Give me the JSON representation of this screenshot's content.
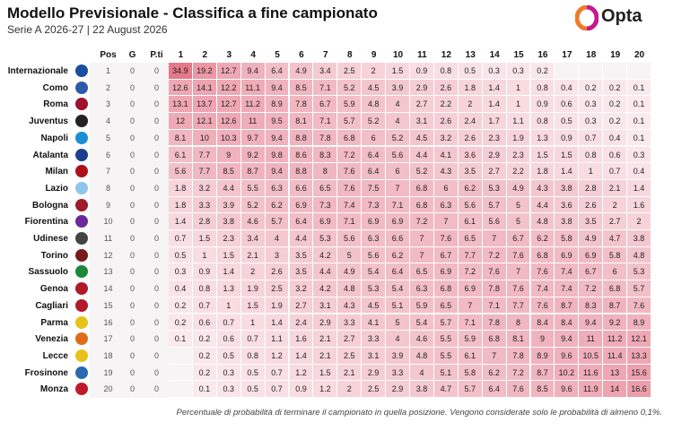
{
  "header": {
    "title": "Modello Previsionale - Classifica a fine campionato",
    "subtitle": "Serie A 2026-27 | 22 August 2026",
    "brand": "Opta"
  },
  "table": {
    "columns": [
      "Pos",
      "G",
      "P.ti",
      "1",
      "2",
      "3",
      "4",
      "5",
      "6",
      "7",
      "8",
      "9",
      "10",
      "11",
      "12",
      "13",
      "14",
      "15",
      "16",
      "17",
      "18",
      "19",
      "20"
    ],
    "rows": [
      {
        "team": "Internazionale",
        "pos": 1,
        "g": 0,
        "pts": 0,
        "probs": [
          34.9,
          19.2,
          12.7,
          9.4,
          6.4,
          4.9,
          3.4,
          2.5,
          2.0,
          1.5,
          0.9,
          0.8,
          0.5,
          0.3,
          0.3,
          0.2,
          null,
          null,
          null,
          null
        ]
      },
      {
        "team": "Como",
        "pos": 2,
        "g": 0,
        "pts": 0,
        "probs": [
          12.6,
          14.1,
          12.2,
          11.1,
          9.4,
          8.5,
          7.1,
          5.2,
          4.5,
          3.9,
          2.9,
          2.6,
          1.8,
          1.4,
          1.0,
          0.8,
          0.4,
          0.2,
          0.2,
          0.1
        ]
      },
      {
        "team": "Roma",
        "pos": 3,
        "g": 0,
        "pts": 0,
        "probs": [
          13.1,
          13.7,
          12.7,
          11.2,
          8.9,
          7.8,
          6.7,
          5.9,
          4.8,
          4.0,
          2.7,
          2.2,
          2.0,
          1.4,
          1.0,
          0.9,
          0.6,
          0.3,
          0.2,
          0.1
        ]
      },
      {
        "team": "Juventus",
        "pos": 4,
        "g": 0,
        "pts": 0,
        "probs": [
          12.0,
          12.1,
          12.6,
          11.0,
          9.5,
          8.1,
          7.1,
          5.7,
          5.2,
          4.0,
          3.1,
          2.6,
          2.4,
          1.7,
          1.1,
          0.8,
          0.5,
          0.3,
          0.2,
          0.1
        ]
      },
      {
        "team": "Napoli",
        "pos": 5,
        "g": 0,
        "pts": 0,
        "probs": [
          8.1,
          10.0,
          10.3,
          9.7,
          9.4,
          8.8,
          7.8,
          6.8,
          6.0,
          5.2,
          4.5,
          3.2,
          2.6,
          2.3,
          1.9,
          1.3,
          0.9,
          0.7,
          0.4,
          0.1
        ]
      },
      {
        "team": "Atalanta",
        "pos": 6,
        "g": 0,
        "pts": 0,
        "probs": [
          6.1,
          7.7,
          9.0,
          9.2,
          9.8,
          8.6,
          8.3,
          7.2,
          6.4,
          5.6,
          4.4,
          4.1,
          3.6,
          2.9,
          2.3,
          1.5,
          1.5,
          0.8,
          0.6,
          0.3
        ]
      },
      {
        "team": "Milan",
        "pos": 7,
        "g": 0,
        "pts": 0,
        "probs": [
          5.6,
          7.7,
          8.5,
          8.7,
          9.4,
          8.8,
          8.0,
          7.6,
          6.4,
          6.0,
          5.2,
          4.3,
          3.5,
          2.7,
          2.2,
          1.8,
          1.4,
          1.0,
          0.7,
          0.4
        ]
      },
      {
        "team": "Lazio",
        "pos": 8,
        "g": 0,
        "pts": 0,
        "probs": [
          1.8,
          3.2,
          4.4,
          5.5,
          6.3,
          6.6,
          6.5,
          7.6,
          7.5,
          7.0,
          6.8,
          6.0,
          6.2,
          5.3,
          4.9,
          4.3,
          3.8,
          2.8,
          2.1,
          1.4
        ]
      },
      {
        "team": "Bologna",
        "pos": 9,
        "g": 0,
        "pts": 0,
        "probs": [
          1.8,
          3.3,
          3.9,
          5.2,
          6.2,
          6.9,
          7.3,
          7.4,
          7.3,
          7.1,
          6.8,
          6.3,
          5.6,
          5.7,
          5.0,
          4.4,
          3.6,
          2.6,
          2.0,
          1.6
        ]
      },
      {
        "team": "Fiorentina",
        "pos": 10,
        "g": 0,
        "pts": 0,
        "probs": [
          1.4,
          2.8,
          3.8,
          4.6,
          5.7,
          6.4,
          6.9,
          7.1,
          6.9,
          6.9,
          7.2,
          7.0,
          6.1,
          5.6,
          5.0,
          4.8,
          3.8,
          3.5,
          2.7,
          2.0
        ]
      },
      {
        "team": "Udinese",
        "pos": 11,
        "g": 0,
        "pts": 0,
        "probs": [
          0.7,
          1.5,
          2.3,
          3.4,
          4.0,
          4.4,
          5.3,
          5.6,
          6.3,
          6.6,
          7.0,
          7.6,
          6.5,
          7.0,
          6.7,
          6.2,
          5.8,
          4.9,
          4.7,
          3.8
        ]
      },
      {
        "team": "Torino",
        "pos": 12,
        "g": 0,
        "pts": 0,
        "probs": [
          0.5,
          1.0,
          1.5,
          2.1,
          3.0,
          3.5,
          4.2,
          5.0,
          5.6,
          6.2,
          7.0,
          6.7,
          7.7,
          7.2,
          7.6,
          6.8,
          6.9,
          6.9,
          5.8,
          4.8
        ]
      },
      {
        "team": "Sassuolo",
        "pos": 13,
        "g": 0,
        "pts": 0,
        "probs": [
          0.3,
          0.9,
          1.4,
          2.0,
          2.6,
          3.5,
          4.4,
          4.9,
          5.4,
          6.4,
          6.5,
          6.9,
          7.2,
          7.6,
          7.0,
          7.6,
          7.4,
          6.7,
          6.0,
          5.3
        ]
      },
      {
        "team": "Genoa",
        "pos": 14,
        "g": 0,
        "pts": 0,
        "probs": [
          0.4,
          0.8,
          1.3,
          1.9,
          2.5,
          3.2,
          4.2,
          4.8,
          5.3,
          5.4,
          6.3,
          6.8,
          6.9,
          7.8,
          7.6,
          7.4,
          7.4,
          7.2,
          6.8,
          5.7
        ]
      },
      {
        "team": "Cagliari",
        "pos": 15,
        "g": 0,
        "pts": 0,
        "probs": [
          0.2,
          0.7,
          1.0,
          1.5,
          1.9,
          2.7,
          3.1,
          4.3,
          4.5,
          5.1,
          5.9,
          6.5,
          7.0,
          7.1,
          7.7,
          7.6,
          8.7,
          8.3,
          8.7,
          7.6
        ]
      },
      {
        "team": "Parma",
        "pos": 16,
        "g": 0,
        "pts": 0,
        "probs": [
          0.2,
          0.6,
          0.7,
          1.0,
          1.4,
          2.4,
          2.9,
          3.3,
          4.1,
          5.0,
          5.4,
          5.7,
          7.1,
          7.8,
          8.0,
          8.4,
          8.4,
          9.4,
          9.2,
          8.9
        ]
      },
      {
        "team": "Venezia",
        "pos": 17,
        "g": 0,
        "pts": 0,
        "probs": [
          0.1,
          0.2,
          0.6,
          0.7,
          1.1,
          1.6,
          2.1,
          2.7,
          3.3,
          4.0,
          4.6,
          5.5,
          5.9,
          6.8,
          8.1,
          9.0,
          9.4,
          11.0,
          11.2,
          12.1
        ]
      },
      {
        "team": "Lecce",
        "pos": 18,
        "g": 0,
        "pts": 0,
        "probs": [
          null,
          0.2,
          0.5,
          0.8,
          1.2,
          1.4,
          2.1,
          2.5,
          3.1,
          3.9,
          4.8,
          5.5,
          6.1,
          7.0,
          7.8,
          8.9,
          9.6,
          10.5,
          11.4,
          13.3
        ]
      },
      {
        "team": "Frosinone",
        "pos": 19,
        "g": 0,
        "pts": 0,
        "probs": [
          null,
          0.2,
          0.3,
          0.5,
          0.7,
          1.2,
          1.5,
          2.1,
          2.9,
          3.3,
          4.0,
          5.1,
          5.8,
          6.2,
          7.2,
          8.7,
          10.2,
          11.6,
          13.0,
          15.6
        ]
      },
      {
        "team": "Monza",
        "pos": 20,
        "g": 0,
        "pts": 0,
        "probs": [
          null,
          0.1,
          0.3,
          0.5,
          0.7,
          0.9,
          1.2,
          2.0,
          2.5,
          2.9,
          3.8,
          4.7,
          5.7,
          6.4,
          7.6,
          8.5,
          9.6,
          11.9,
          14.0,
          16.6
        ]
      }
    ]
  },
  "footnote": "Percentuale di probabilità di terminare il campionato in quella posizione. Vengono considerate solo le probabilità di almeno 0,1%."
}
